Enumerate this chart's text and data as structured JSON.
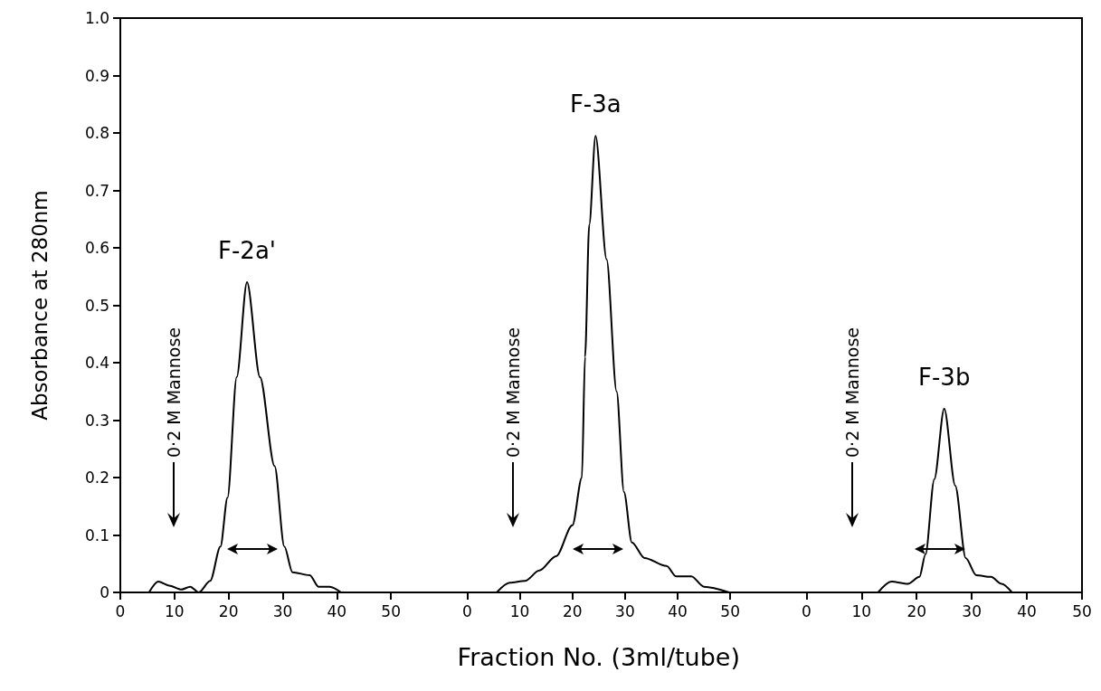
{
  "chart_data": [
    {
      "type": "line",
      "ylabel": "Absorbance at 280nm",
      "color": "#000000",
      "marker": "none",
      "line_style": "solid",
      "grid": false,
      "x": [
        5.3,
        7,
        9,
        11.3,
        12.9,
        14.5,
        16.6,
        18.5,
        19.8,
        21.5,
        23.4,
        25.8,
        28.5,
        30.3,
        31.8,
        35,
        36.6,
        38.7,
        40.8
      ],
      "values": [
        0,
        0.019,
        0.012,
        0.005,
        0.01,
        0,
        0.02,
        0.08,
        0.165,
        0.375,
        0.54,
        0.375,
        0.22,
        0.08,
        0.035,
        0.03,
        0.01,
        0.01,
        0
      ],
      "xlim": [
        0,
        50
      ],
      "xticks": [
        0,
        10,
        20,
        30,
        40,
        50
      ],
      "ylim": [
        0,
        1
      ],
      "yticks": [
        0,
        0.1,
        0.2,
        0.3,
        0.4,
        0.5,
        0.6,
        0.7,
        0.8,
        0.9,
        {
          "value": 1,
          "label": "1.0"
        }
      ],
      "annotations": [
        {
          "text": "F-2a'",
          "x": 23.4,
          "y": 0.54
        },
        "0·2 M Mannose"
      ]
    },
    {
      "type": "line",
      "xlabel": "Fraction No. (3ml/tube)",
      "color": "#000000",
      "marker": "none",
      "line_style": "solid",
      "grid": false,
      "tick_labels": "x",
      "x": [
        5.6,
        8.1,
        11,
        13.7,
        16.9,
        20,
        21.8,
        22.4,
        23.2,
        24.4,
        26.5,
        28.4,
        29.8,
        31.3,
        33.7,
        37.9,
        39.7,
        42.6,
        45,
        49.8
      ],
      "values": [
        0,
        0.017,
        0.02,
        0.038,
        0.063,
        0.117,
        0.2,
        0.41,
        0.64,
        0.795,
        0.58,
        0.35,
        0.175,
        0.087,
        0.06,
        0.046,
        0.028,
        0.028,
        0.01,
        0
      ],
      "xlim": [
        0,
        50
      ],
      "xticks": [
        0,
        10,
        20,
        30,
        40,
        50
      ],
      "ylim": [
        0,
        1
      ],
      "annotations": [
        {
          "text": "F-3a",
          "x": 24.4,
          "y": 0.795
        },
        "0·2 M Mannose"
      ]
    },
    {
      "type": "line",
      "color": "#000000",
      "marker": "none",
      "line_style": "solid",
      "grid": false,
      "tick_labels": "x",
      "x": [
        13,
        15.4,
        18.4,
        20.5,
        21.6,
        23.2,
        25,
        27,
        28.9,
        30.8,
        33.5,
        35.4,
        37.3
      ],
      "values": [
        0,
        0.019,
        0.015,
        0.027,
        0.066,
        0.197,
        0.32,
        0.186,
        0.06,
        0.03,
        0.027,
        0.015,
        0
      ],
      "xlim": [
        0,
        50
      ],
      "xticks": [
        0,
        10,
        20,
        30,
        40,
        50
      ],
      "ylim": [
        0,
        1
      ],
      "annotations": [
        {
          "text": "F-3b",
          "x": 25,
          "y": 0.32
        },
        "0·2 M Mannose"
      ]
    }
  ]
}
